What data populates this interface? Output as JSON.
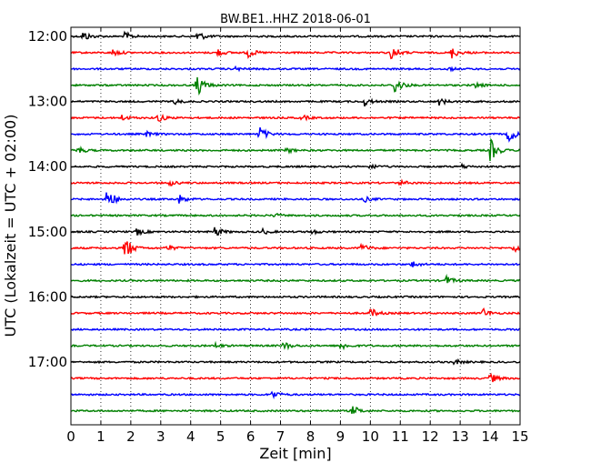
{
  "chart_data": {
    "type": "line",
    "title": "BW.BE1..HHZ 2018-06-01",
    "xlabel": "Zeit  [min]",
    "ylabel": "UTC (Lokalzeit = UTC + 02:00)",
    "xlim": [
      0,
      15
    ],
    "x_ticks": [
      "0",
      "1",
      "2",
      "3",
      "4",
      "5",
      "6",
      "7",
      "8",
      "9",
      "10",
      "11",
      "12",
      "13",
      "14",
      "15"
    ],
    "y_ticks": [
      "12:00",
      "13:00",
      "14:00",
      "15:00",
      "16:00",
      "17:00"
    ],
    "grid": true,
    "color_cycle": [
      "#000000",
      "#ff0000",
      "#0000ff",
      "#008000"
    ],
    "rows": [
      {
        "time": "12:00",
        "color": "#000000",
        "events": [
          {
            "t": 0.4,
            "amp": 6
          },
          {
            "t": 1.8,
            "amp": 5
          },
          {
            "t": 4.2,
            "amp": 7
          }
        ]
      },
      {
        "time": "12:15",
        "color": "#ff0000",
        "events": [
          {
            "t": 1.4,
            "amp": 4
          },
          {
            "t": 4.9,
            "amp": 4
          },
          {
            "t": 5.9,
            "amp": 6
          },
          {
            "t": 10.7,
            "amp": 9
          },
          {
            "t": 12.7,
            "amp": 7
          }
        ]
      },
      {
        "time": "12:30",
        "color": "#0000ff",
        "events": [
          {
            "t": 5.5,
            "amp": 2
          },
          {
            "t": 12.6,
            "amp": 2
          }
        ]
      },
      {
        "time": "12:45",
        "color": "#008000",
        "events": [
          {
            "t": 4.2,
            "amp": 14
          },
          {
            "t": 10.8,
            "amp": 11
          },
          {
            "t": 13.5,
            "amp": 3
          }
        ]
      },
      {
        "time": "13:00",
        "color": "#000000",
        "events": [
          {
            "t": 3.4,
            "amp": 4
          },
          {
            "t": 9.8,
            "amp": 5
          },
          {
            "t": 12.3,
            "amp": 4
          }
        ]
      },
      {
        "time": "13:15",
        "color": "#ff0000",
        "events": [
          {
            "t": 1.7,
            "amp": 3
          },
          {
            "t": 2.9,
            "amp": 5
          },
          {
            "t": 7.7,
            "amp": 3
          }
        ]
      },
      {
        "time": "13:30",
        "color": "#0000ff",
        "events": [
          {
            "t": 2.5,
            "amp": 3
          },
          {
            "t": 6.3,
            "amp": 9
          },
          {
            "t": 14.6,
            "amp": 11
          }
        ]
      },
      {
        "time": "13:45",
        "color": "#008000",
        "events": [
          {
            "t": 0.2,
            "amp": 5
          },
          {
            "t": 7.2,
            "amp": 3
          },
          {
            "t": 14.0,
            "amp": 14
          }
        ]
      },
      {
        "time": "14:00",
        "color": "#000000",
        "events": [
          {
            "t": 10.0,
            "amp": 3
          },
          {
            "t": 13.0,
            "amp": 3
          }
        ]
      },
      {
        "time": "14:15",
        "color": "#ff0000",
        "events": [
          {
            "t": 3.3,
            "amp": 3
          },
          {
            "t": 11.0,
            "amp": 3
          }
        ]
      },
      {
        "time": "14:30",
        "color": "#0000ff",
        "events": [
          {
            "t": 1.2,
            "amp": 15
          },
          {
            "t": 3.6,
            "amp": 5
          },
          {
            "t": 9.8,
            "amp": 3
          }
        ]
      },
      {
        "time": "14:45",
        "color": "#008000",
        "events": [
          {
            "t": 6.8,
            "amp": 2
          }
        ]
      },
      {
        "time": "15:00",
        "color": "#000000",
        "events": [
          {
            "t": 2.2,
            "amp": 4
          },
          {
            "t": 4.8,
            "amp": 6
          },
          {
            "t": 6.4,
            "amp": 3
          },
          {
            "t": 8.0,
            "amp": 3
          }
        ]
      },
      {
        "time": "15:15",
        "color": "#ff0000",
        "events": [
          {
            "t": 1.8,
            "amp": 15
          },
          {
            "t": 3.2,
            "amp": 4
          },
          {
            "t": 9.7,
            "amp": 5
          },
          {
            "t": 14.8,
            "amp": 5
          }
        ]
      },
      {
        "time": "15:30",
        "color": "#0000ff",
        "events": [
          {
            "t": 11.4,
            "amp": 4
          }
        ]
      },
      {
        "time": "15:45",
        "color": "#008000",
        "events": [
          {
            "t": 12.5,
            "amp": 6
          }
        ]
      },
      {
        "time": "16:00",
        "color": "#000000",
        "events": []
      },
      {
        "time": "16:15",
        "color": "#ff0000",
        "events": [
          {
            "t": 10.0,
            "amp": 6
          },
          {
            "t": 13.7,
            "amp": 7
          }
        ]
      },
      {
        "time": "16:30",
        "color": "#0000ff",
        "events": []
      },
      {
        "time": "16:45",
        "color": "#008000",
        "events": [
          {
            "t": 4.8,
            "amp": 3
          },
          {
            "t": 7.1,
            "amp": 5
          },
          {
            "t": 9.0,
            "amp": 5
          }
        ]
      },
      {
        "time": "17:00",
        "color": "#000000",
        "events": [
          {
            "t": 12.8,
            "amp": 3
          }
        ]
      },
      {
        "time": "17:15",
        "color": "#ff0000",
        "events": [
          {
            "t": 14.0,
            "amp": 6
          }
        ]
      },
      {
        "time": "17:30",
        "color": "#0000ff",
        "events": [
          {
            "t": 6.7,
            "amp": 5
          }
        ]
      },
      {
        "time": "17:45",
        "color": "#008000",
        "events": [
          {
            "t": 9.4,
            "amp": 6
          }
        ]
      }
    ]
  }
}
